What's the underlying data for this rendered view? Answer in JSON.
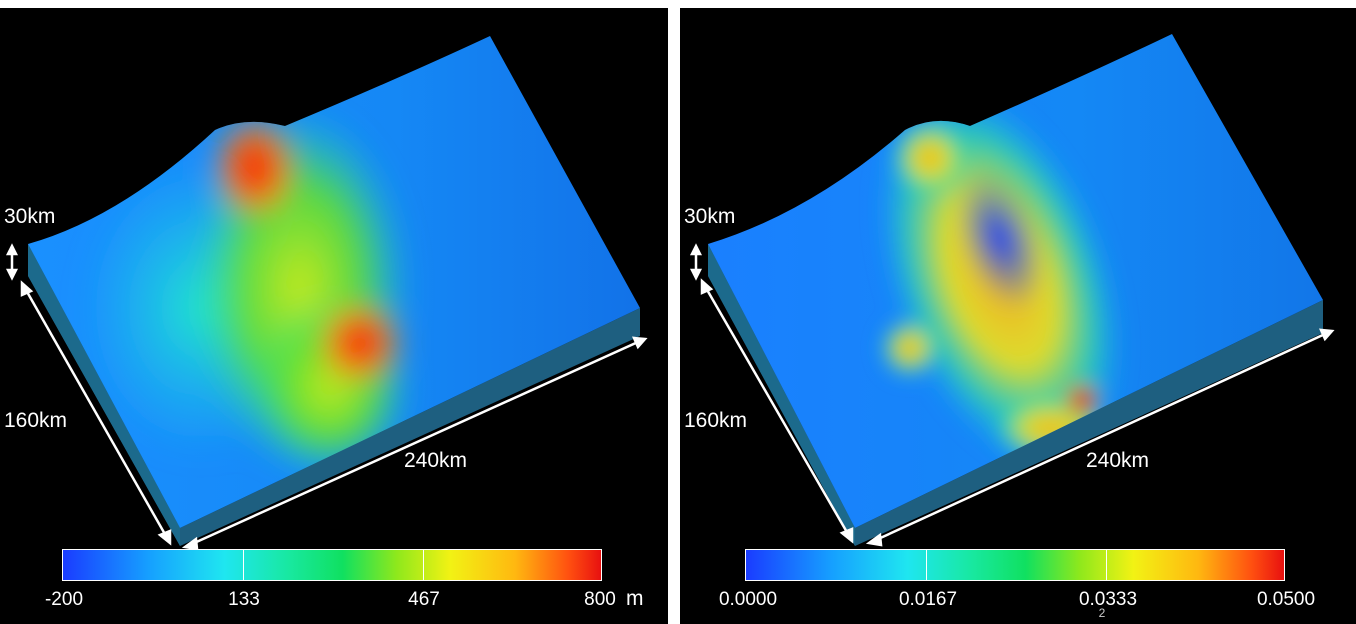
{
  "panels": [
    {
      "depth_label": "30km",
      "width_label": "160km",
      "length_label": "240km",
      "colorbar": {
        "ticks": [
          "-200",
          "133",
          "467",
          "800"
        ],
        "unit": "m"
      }
    },
    {
      "depth_label": "30km",
      "width_label": "160km",
      "length_label": "240km",
      "colorbar": {
        "ticks": [
          "0.0000",
          "0.0167",
          "0.0333",
          "0.0500"
        ],
        "unit": ""
      },
      "page_number": "2"
    }
  ],
  "colors": {
    "background": "#000000",
    "low": "#1a3cff",
    "high": "#e81010"
  }
}
